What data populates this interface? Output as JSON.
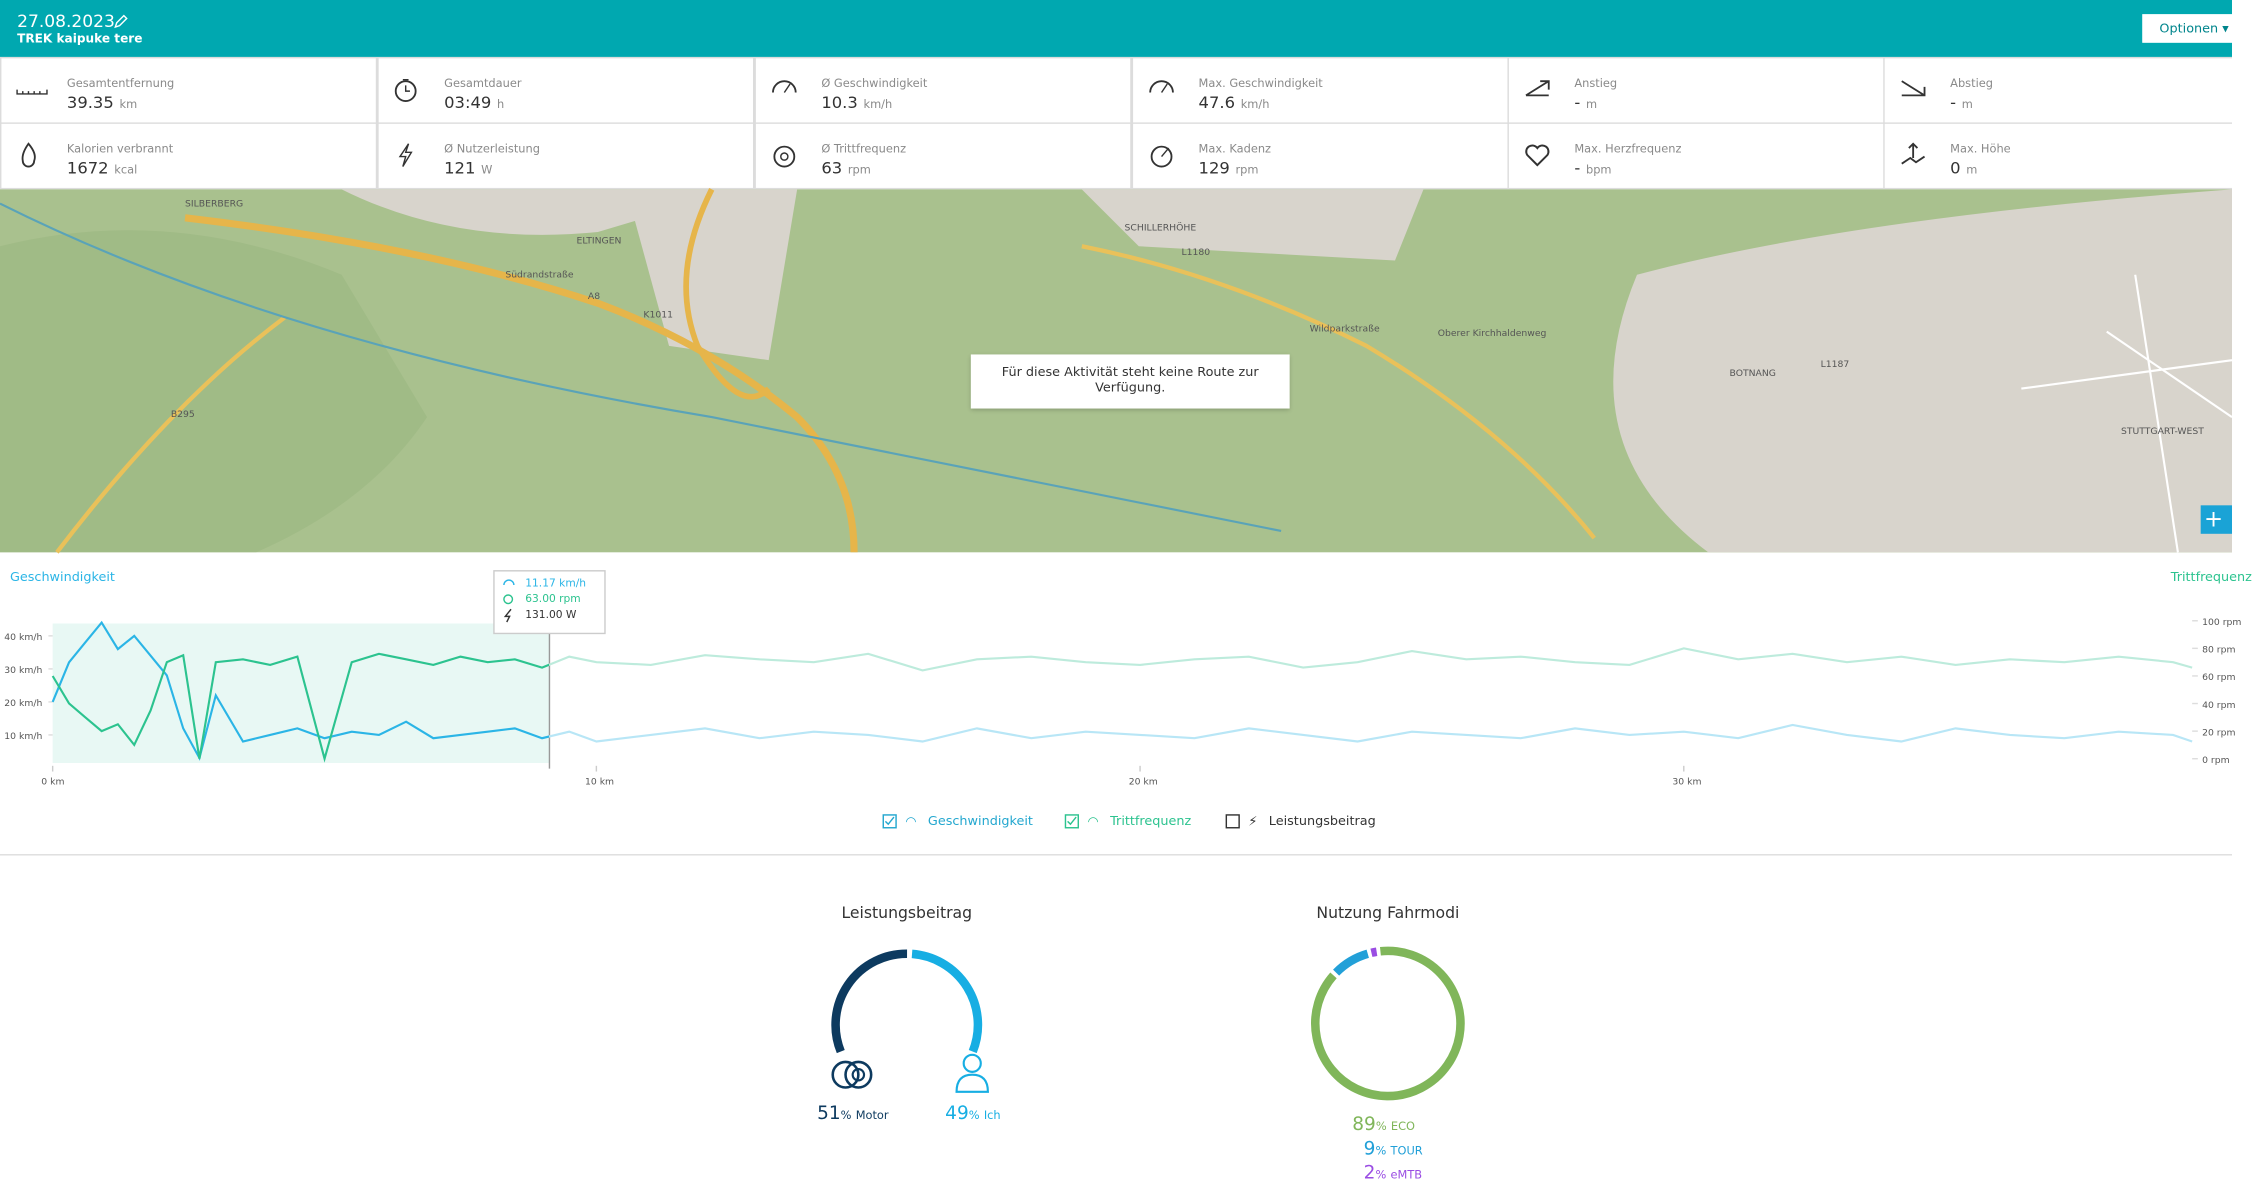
{
  "header": {
    "date": "27.08.2023",
    "bike": "TREK kaipuke tere",
    "options": "Optionen"
  },
  "stats": [
    {
      "label": "Gesamtentfernung",
      "value": "39.35",
      "unit": "km"
    },
    {
      "label": "Gesamtdauer",
      "value": "03:49",
      "unit": "h"
    },
    {
      "label": "Ø Geschwindigkeit",
      "value": "10.3",
      "unit": "km/h"
    },
    {
      "label": "Max. Geschwindigkeit",
      "value": "47.6",
      "unit": "km/h"
    },
    {
      "label": "Anstieg",
      "value": "-",
      "unit": "m"
    },
    {
      "label": "Abstieg",
      "value": "-",
      "unit": "m"
    },
    {
      "label": "Kalorien verbrannt",
      "value": "1672",
      "unit": "kcal"
    },
    {
      "label": "Ø Nutzerleistung",
      "value": "121",
      "unit": "W"
    },
    {
      "label": "Ø Trittfrequenz",
      "value": "63",
      "unit": "rpm"
    },
    {
      "label": "Max. Kadenz",
      "value": "129",
      "unit": "rpm"
    },
    {
      "label": "Max. Herzfrequenz",
      "value": "-",
      "unit": "bpm"
    },
    {
      "label": "Max. Höhe",
      "value": "0",
      "unit": "m"
    }
  ],
  "map": {
    "message": "Für diese Aktivität steht keine Route zur Verfügung.",
    "labels": [
      "SILBERBERG",
      "ELTINGEN",
      "SCHILLERHÖHE",
      "BOTNANG",
      "STUTTGART-WEST",
      "Südrandstraße",
      "Wildparkstraße",
      "Oberer Kirchhaldenweg",
      "A8",
      "K1011",
      "L1180",
      "L1187",
      "B295"
    ]
  },
  "chart_data": {
    "type": "line",
    "left_title": "Geschwindigkeit",
    "right_title": "Trittfrequenz",
    "x": [
      0,
      0.3,
      0.6,
      0.9,
      1.2,
      1.5,
      1.8,
      2.1,
      2.4,
      2.7,
      3.0,
      3.5,
      4,
      4.5,
      5,
      5.5,
      6,
      6.5,
      7,
      7.5,
      8,
      8.5,
      9,
      9.5,
      10,
      11,
      12,
      13,
      14,
      15,
      16,
      17,
      18,
      19,
      20,
      21,
      22,
      23,
      24,
      25,
      26,
      27,
      28,
      29,
      30,
      31,
      32,
      33,
      34,
      35,
      36,
      37,
      38,
      39,
      39.35
    ],
    "series": [
      {
        "name": "Geschwindigkeit",
        "color": "#2bb5e6",
        "axis": "y",
        "checked": true,
        "values": [
          20,
          32,
          38,
          44,
          36,
          40,
          34,
          28,
          12,
          3,
          22,
          8,
          10,
          12,
          9,
          11,
          10,
          14,
          9,
          10,
          11,
          12,
          9,
          11,
          8,
          10,
          12,
          9,
          11,
          10,
          8,
          12,
          9,
          11,
          10,
          9,
          12,
          10,
          8,
          11,
          10,
          9,
          12,
          10,
          11,
          9,
          13,
          10,
          8,
          12,
          10,
          9,
          11,
          10,
          8
        ]
      },
      {
        "name": "Trittfrequenz",
        "color": "#2cc38f",
        "axis": "y2",
        "checked": true,
        "values": [
          60,
          40,
          30,
          20,
          25,
          10,
          35,
          70,
          75,
          0,
          70,
          72,
          68,
          74,
          0,
          70,
          76,
          72,
          68,
          74,
          70,
          72,
          66,
          74,
          70,
          68,
          75,
          72,
          70,
          76,
          64,
          72,
          74,
          70,
          68,
          72,
          74,
          66,
          70,
          78,
          72,
          74,
          70,
          68,
          80,
          72,
          76,
          70,
          74,
          68,
          72,
          70,
          74,
          70,
          66
        ]
      }
    ],
    "extra_toggle": {
      "name": "Leistungsbeitrag",
      "checked": false
    },
    "xlim": [
      0,
      39.35
    ],
    "xticks": [
      {
        "value": 0,
        "label": "0 km"
      },
      {
        "value": 10,
        "label": "10 km"
      },
      {
        "value": 20,
        "label": "20 km"
      },
      {
        "value": 30,
        "label": "30 km"
      }
    ],
    "ylim": [
      0,
      50
    ],
    "yticks": [
      {
        "value": 10,
        "label": "10 km/h"
      },
      {
        "value": 20,
        "label": "20 km/h"
      },
      {
        "value": 30,
        "label": "30 km/h"
      },
      {
        "value": 40,
        "label": "40 km/h"
      }
    ],
    "y2lim": [
      0,
      110
    ],
    "y2ticks": [
      {
        "value": 0,
        "label": "0 rpm"
      },
      {
        "value": 20,
        "label": "20 rpm"
      },
      {
        "value": 40,
        "label": "40 rpm"
      },
      {
        "value": 60,
        "label": "60 rpm"
      },
      {
        "value": 80,
        "label": "80 rpm"
      },
      {
        "value": 100,
        "label": "100 rpm"
      }
    ],
    "tooltip": {
      "speed": "11.17 km/h",
      "cadence": "63.00 rpm",
      "power": "131.00 W"
    }
  },
  "contribution": {
    "title": "Leistungsbeitrag",
    "unit": "%",
    "segments": [
      {
        "name": "Motor",
        "value": 51,
        "color": "#0d3a5f"
      },
      {
        "name": "Ich",
        "value": 49,
        "color": "#17aee3"
      }
    ]
  },
  "modes": {
    "title": "Nutzung Fahrmodi",
    "unit": "%",
    "segments": [
      {
        "name": "ECO",
        "value": 89,
        "color": "#80b65a"
      },
      {
        "name": "TOUR",
        "value": 9,
        "color": "#22a0d8"
      },
      {
        "name": "eMTB",
        "value": 2,
        "color": "#9a4de3"
      }
    ]
  }
}
